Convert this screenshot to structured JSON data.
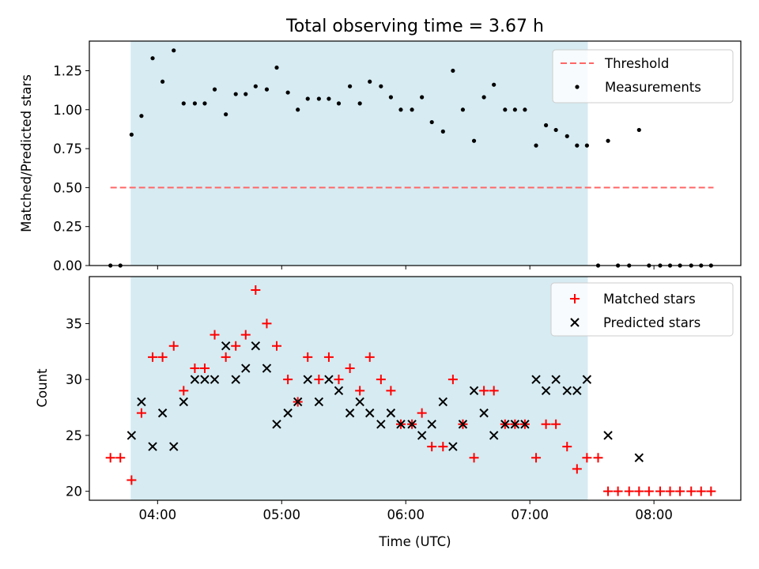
{
  "chart_data": [
    {
      "type": "scatter",
      "title": "Total observing time = 3.67 h",
      "xlabel": "",
      "ylabel": "Matched/Predicted stars",
      "x_unit": "hours UTC",
      "xlim": [
        3.45,
        8.7
      ],
      "ylim": [
        0.0,
        1.44
      ],
      "yticks": [
        "0.00",
        "0.25",
        "0.50",
        "0.75",
        "1.00",
        "1.25"
      ],
      "xticks_labels": false,
      "shaded_span": {
        "x_start": "03:47",
        "x_end": "07:28",
        "color": "#add8e6"
      },
      "threshold": {
        "name": "Threshold",
        "value": 0.5,
        "x_range": [
          3.62,
          8.48
        ],
        "color": "#ff6666",
        "style": "dashed"
      },
      "legend": {
        "position": "upper-right",
        "entries": [
          "Threshold",
          "Measurements"
        ]
      },
      "series": [
        {
          "name": "Measurements",
          "color": "#000000",
          "marker": "dot",
          "x": [
            3.62,
            3.7,
            3.79,
            3.87,
            3.96,
            4.04,
            4.13,
            4.21,
            4.3,
            4.38,
            4.46,
            4.55,
            4.63,
            4.71,
            4.79,
            4.88,
            4.96,
            5.05,
            5.13,
            5.21,
            5.3,
            5.38,
            5.46,
            5.55,
            5.63,
            5.71,
            5.8,
            5.88,
            5.96,
            6.05,
            6.13,
            6.21,
            6.3,
            6.38,
            6.46,
            6.55,
            6.63,
            6.71,
            6.8,
            6.88,
            6.96,
            7.05,
            7.13,
            7.21,
            7.3,
            7.38,
            7.46,
            7.55,
            7.63,
            7.71,
            7.8,
            7.88,
            7.96,
            8.05,
            8.13,
            8.21,
            8.3,
            8.38,
            8.46
          ],
          "y": [
            0.0,
            0.0,
            0.84,
            0.96,
            1.33,
            1.18,
            1.38,
            1.04,
            1.04,
            1.04,
            1.13,
            0.97,
            1.1,
            1.1,
            1.15,
            1.13,
            1.27,
            1.11,
            1.0,
            1.07,
            1.07,
            1.07,
            1.04,
            1.15,
            1.04,
            1.18,
            1.15,
            1.08,
            1.0,
            1.0,
            1.08,
            0.92,
            0.86,
            1.25,
            1.0,
            0.8,
            1.08,
            1.16,
            1.0,
            1.0,
            1.0,
            0.77,
            0.9,
            0.87,
            0.83,
            0.77,
            0.77,
            0.0,
            0.8,
            0.0,
            0.0,
            0.87,
            0.0,
            0.0,
            0.0,
            0.0,
            0.0,
            0.0,
            0.0
          ]
        }
      ]
    },
    {
      "type": "scatter",
      "title": "",
      "xlabel": "Time (UTC)",
      "ylabel": "Count",
      "x_unit": "hours UTC",
      "xlim": [
        3.45,
        8.7
      ],
      "ylim": [
        19.2,
        39.2
      ],
      "yticks": [
        "20",
        "25",
        "30",
        "35"
      ],
      "xticks": [
        "04:00",
        "05:00",
        "06:00",
        "07:00",
        "08:00"
      ],
      "shaded_span": {
        "x_start": "03:47",
        "x_end": "07:28",
        "color": "#add8e6"
      },
      "legend": {
        "position": "upper-right",
        "entries": [
          "Matched stars",
          "Predicted stars"
        ]
      },
      "series": [
        {
          "name": "Matched stars",
          "color": "#ff0000",
          "marker": "plus",
          "x": [
            3.62,
            3.7,
            3.79,
            3.87,
            3.96,
            4.04,
            4.13,
            4.21,
            4.3,
            4.38,
            4.46,
            4.55,
            4.63,
            4.71,
            4.79,
            4.88,
            4.96,
            5.05,
            5.13,
            5.21,
            5.3,
            5.38,
            5.46,
            5.55,
            5.63,
            5.71,
            5.8,
            5.88,
            5.96,
            6.05,
            6.13,
            6.21,
            6.3,
            6.38,
            6.46,
            6.55,
            6.63,
            6.71,
            6.8,
            6.88,
            6.96,
            7.05,
            7.13,
            7.21,
            7.3,
            7.38,
            7.46,
            7.55,
            7.63,
            7.71,
            7.8,
            7.88,
            7.96,
            8.05,
            8.13,
            8.21,
            8.3,
            8.38,
            8.46
          ],
          "y": [
            23,
            23,
            21,
            27,
            32,
            32,
            33,
            29,
            31,
            31,
            34,
            32,
            33,
            34,
            38,
            35,
            33,
            30,
            28,
            32,
            30,
            32,
            30,
            31,
            29,
            32,
            30,
            29,
            26,
            26,
            27,
            24,
            24,
            30,
            26,
            23,
            29,
            29,
            26,
            26,
            26,
            23,
            26,
            26,
            24,
            22,
            23,
            23,
            20,
            20,
            20,
            20,
            20,
            20,
            20,
            20,
            20,
            20,
            20
          ]
        },
        {
          "name": "Predicted stars",
          "color": "#000000",
          "marker": "x",
          "x": [
            3.79,
            3.87,
            3.96,
            4.04,
            4.13,
            4.21,
            4.3,
            4.38,
            4.46,
            4.55,
            4.63,
            4.71,
            4.79,
            4.88,
            4.96,
            5.05,
            5.13,
            5.21,
            5.3,
            5.38,
            5.46,
            5.55,
            5.63,
            5.71,
            5.8,
            5.88,
            5.96,
            6.05,
            6.13,
            6.21,
            6.3,
            6.38,
            6.46,
            6.55,
            6.63,
            6.71,
            6.8,
            6.88,
            6.96,
            7.05,
            7.13,
            7.21,
            7.3,
            7.38,
            7.46,
            7.63,
            7.88
          ],
          "y": [
            25,
            28,
            24,
            27,
            24,
            28,
            30,
            30,
            30,
            33,
            30,
            31,
            33,
            31,
            26,
            27,
            28,
            30,
            28,
            30,
            29,
            27,
            28,
            27,
            26,
            27,
            26,
            26,
            25,
            26,
            28,
            24,
            26,
            29,
            27,
            25,
            26,
            26,
            26,
            30,
            29,
            30,
            29,
            29,
            30,
            25,
            23
          ]
        }
      ]
    }
  ]
}
